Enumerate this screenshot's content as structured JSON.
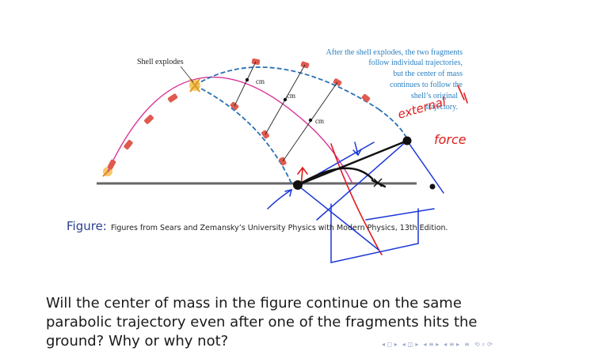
{
  "figure": {
    "label_shell_explodes": "Shell explodes",
    "label_cm_1": "cm",
    "label_cm_2": "cm",
    "label_cm_3": "cm",
    "annotation_lines": [
      "After the shell explodes, the two fragments",
      "follow individual trajectories,",
      "but the center of mass",
      "continues to follow the",
      "shell’s original",
      "trajectory."
    ]
  },
  "handwriting": {
    "word_1": "external",
    "word_2": "force"
  },
  "caption": {
    "label": "Figure:",
    "text": "Figures from Sears and Zemansky’s University Physics with Modern Physics, 13th Edition."
  },
  "question": {
    "lines": [
      "Will the center of mass in the figure continue on the same",
      "parabolic trajectory even after one of the fragments hits the",
      "ground? Why or why not?"
    ]
  },
  "colors": {
    "trajectory_pink": "#d8349a",
    "fragment_blue": "#2b6fb3",
    "annotation_blue": "#2a7fc0",
    "ink_red": "#e01b1b",
    "ink_blue": "#1a36d8",
    "caption_label": "#2a3f8f"
  }
}
